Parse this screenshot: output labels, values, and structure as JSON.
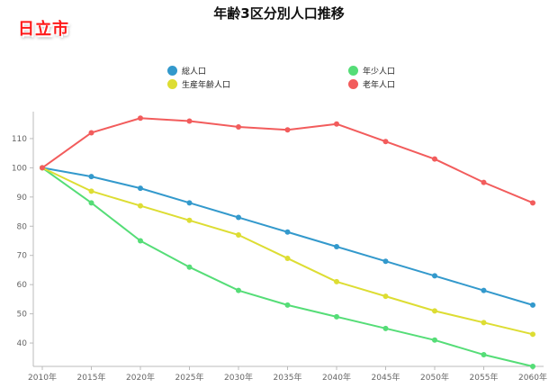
{
  "header": {
    "title": "年齢3区分別人口推移",
    "city": "日立市"
  },
  "chart_data": {
    "type": "line",
    "title": "年齢3区分別人口推移",
    "xlabel": "",
    "ylabel": "",
    "categories": [
      "2010年",
      "2015年",
      "2020年",
      "2025年",
      "2030年",
      "2035年",
      "2040年",
      "2045年",
      "2050年",
      "2055年",
      "2060年"
    ],
    "ylim": [
      32,
      118
    ],
    "yticks": [
      40,
      50,
      60,
      70,
      80,
      90,
      100,
      110
    ],
    "grid": false,
    "legend_position": "top",
    "series": [
      {
        "name": "総人口",
        "color": "#3399cc",
        "values": [
          100,
          97,
          93,
          88,
          83,
          78,
          73,
          68,
          63,
          58,
          53
        ]
      },
      {
        "name": "年少人口",
        "color": "#55dd77",
        "values": [
          100,
          88,
          75,
          66,
          58,
          53,
          49,
          45,
          41,
          36,
          32
        ]
      },
      {
        "name": "生産年齢人口",
        "color": "#dddd33",
        "values": [
          100,
          92,
          87,
          82,
          77,
          69,
          61,
          56,
          51,
          47,
          43
        ]
      },
      {
        "name": "老年人口",
        "color": "#f25c5c",
        "values": [
          100,
          112,
          117,
          116,
          114,
          113,
          115,
          109,
          103,
          95,
          88
        ]
      }
    ]
  }
}
